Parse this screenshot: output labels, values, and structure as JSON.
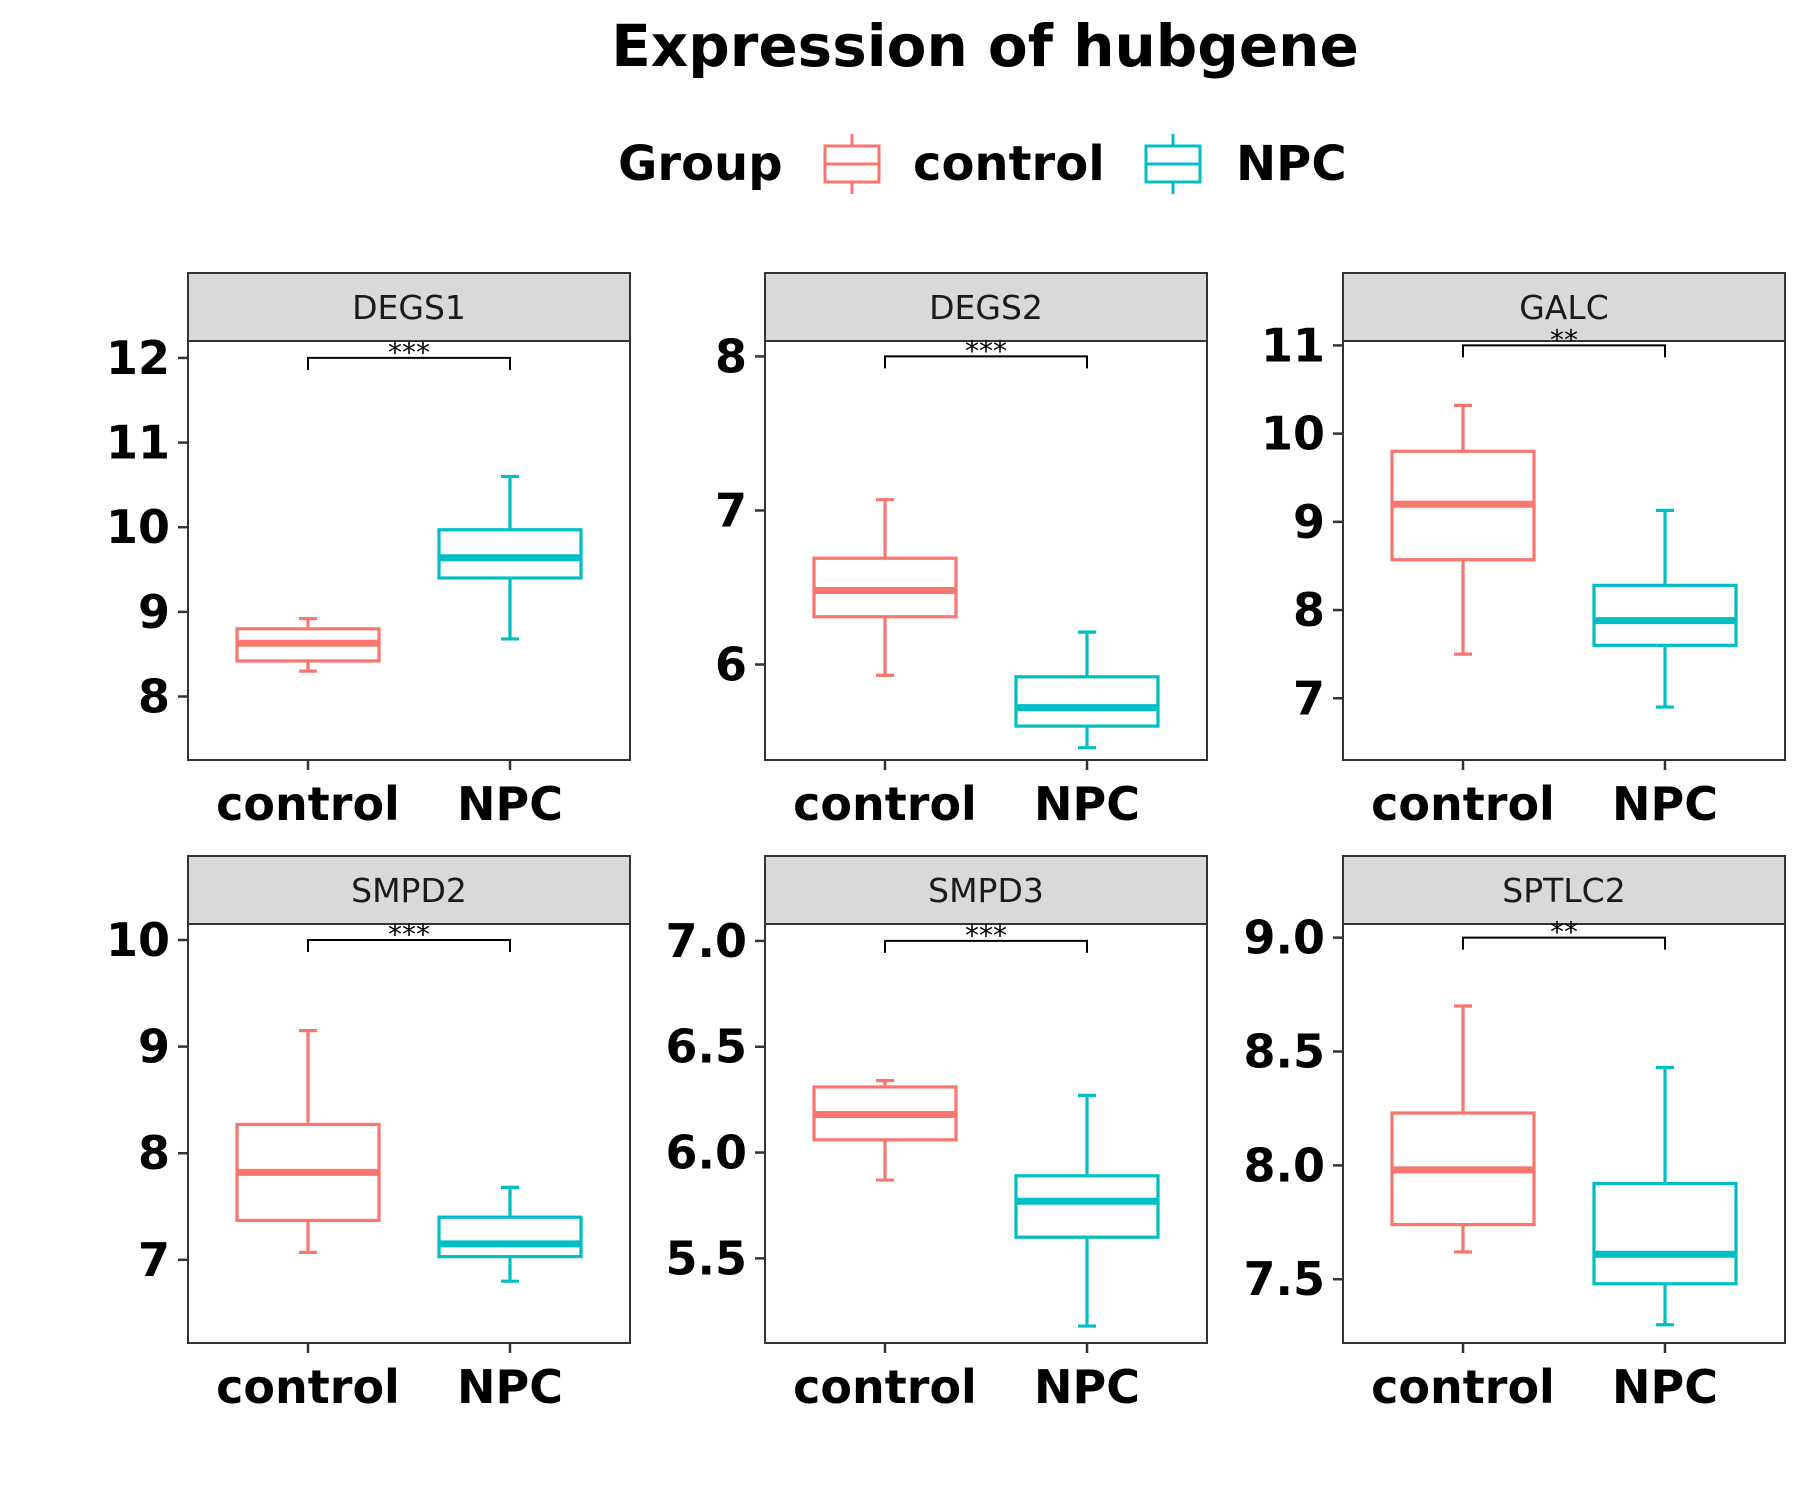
{
  "figure": {
    "title": "Expression of hubgene",
    "legend": {
      "title": "Group",
      "placement": "top",
      "items": [
        {
          "label": "control",
          "color": "#F8766D"
        },
        {
          "label": "NPC",
          "color": "#00BFC4"
        }
      ]
    },
    "colors": {
      "control": "#F8766D",
      "NPC": "#00BFC4",
      "strip_bg": "#D9D9D9",
      "panel_border": "#333333"
    }
  },
  "chart_data": [
    {
      "type": "box",
      "strip": "DEGS1",
      "categories": [
        "control",
        "NPC"
      ],
      "ylim": [
        7.25,
        12.2
      ],
      "yticks": [
        8,
        9,
        10,
        11,
        12
      ],
      "tick_labels": [
        "8",
        "9",
        "10",
        "11",
        "12"
      ],
      "boxes": [
        {
          "group": "control",
          "whisker_low": 8.3,
          "q1": 8.42,
          "median": 8.63,
          "q3": 8.8,
          "whisker_high": 8.92
        },
        {
          "group": "NPC",
          "whisker_low": 8.68,
          "q1": 9.4,
          "median": 9.64,
          "q3": 9.97,
          "whisker_high": 10.6
        }
      ],
      "significance": "***",
      "sig_y": 12.0
    },
    {
      "type": "box",
      "strip": "DEGS2",
      "categories": [
        "control",
        "NPC"
      ],
      "ylim": [
        5.38,
        8.1
      ],
      "yticks": [
        6,
        7,
        8
      ],
      "tick_labels": [
        "6",
        "7",
        "8"
      ],
      "boxes": [
        {
          "group": "control",
          "whisker_low": 5.93,
          "q1": 6.31,
          "median": 6.48,
          "q3": 6.69,
          "whisker_high": 7.07
        },
        {
          "group": "NPC",
          "whisker_low": 5.46,
          "q1": 5.6,
          "median": 5.72,
          "q3": 5.92,
          "whisker_high": 6.21
        }
      ],
      "significance": "***",
      "sig_y": 8.0
    },
    {
      "type": "box",
      "strip": "GALC",
      "categories": [
        "control",
        "NPC"
      ],
      "ylim": [
        6.3,
        11.05
      ],
      "yticks": [
        7,
        8,
        9,
        10,
        11
      ],
      "tick_labels": [
        "7",
        "8",
        "9",
        "10",
        "11"
      ],
      "boxes": [
        {
          "group": "control",
          "whisker_low": 7.5,
          "q1": 8.57,
          "median": 9.2,
          "q3": 9.8,
          "whisker_high": 10.32
        },
        {
          "group": "NPC",
          "whisker_low": 6.9,
          "q1": 7.6,
          "median": 7.88,
          "q3": 8.28,
          "whisker_high": 9.13
        }
      ],
      "significance": "**",
      "sig_y": 11.0
    },
    {
      "type": "box",
      "strip": "SMPD2",
      "categories": [
        "control",
        "NPC"
      ],
      "ylim": [
        6.22,
        10.15
      ],
      "yticks": [
        7,
        8,
        9,
        10
      ],
      "tick_labels": [
        "7",
        "8",
        "9",
        "10"
      ],
      "boxes": [
        {
          "group": "control",
          "whisker_low": 7.07,
          "q1": 7.37,
          "median": 7.82,
          "q3": 8.27,
          "whisker_high": 9.15
        },
        {
          "group": "NPC",
          "whisker_low": 6.8,
          "q1": 7.03,
          "median": 7.15,
          "q3": 7.4,
          "whisker_high": 7.68
        }
      ],
      "significance": "***",
      "sig_y": 10.0
    },
    {
      "type": "box",
      "strip": "SMPD3",
      "categories": [
        "control",
        "NPC"
      ],
      "ylim": [
        5.1,
        7.08
      ],
      "yticks": [
        5.5,
        6.0,
        6.5,
        7.0
      ],
      "tick_labels": [
        "5.5",
        "6.0",
        "6.5",
        "7.0"
      ],
      "boxes": [
        {
          "group": "control",
          "whisker_low": 5.87,
          "q1": 6.06,
          "median": 6.18,
          "q3": 6.31,
          "whisker_high": 6.34
        },
        {
          "group": "NPC",
          "whisker_low": 5.18,
          "q1": 5.6,
          "median": 5.77,
          "q3": 5.89,
          "whisker_high": 6.27
        }
      ],
      "significance": "***",
      "sig_y": 7.0
    },
    {
      "type": "box",
      "strip": "SPTLC2",
      "categories": [
        "control",
        "NPC"
      ],
      "ylim": [
        7.22,
        9.06
      ],
      "yticks": [
        7.5,
        8.0,
        8.5,
        9.0
      ],
      "tick_labels": [
        "7.5",
        "8.0",
        "8.5",
        "9.0"
      ],
      "boxes": [
        {
          "group": "control",
          "whisker_low": 7.62,
          "q1": 7.74,
          "median": 7.98,
          "q3": 8.23,
          "whisker_high": 8.7
        },
        {
          "group": "NPC",
          "whisker_low": 7.3,
          "q1": 7.48,
          "median": 7.61,
          "q3": 7.92,
          "whisker_high": 8.43
        }
      ],
      "significance": "**",
      "sig_y": 9.0
    }
  ]
}
